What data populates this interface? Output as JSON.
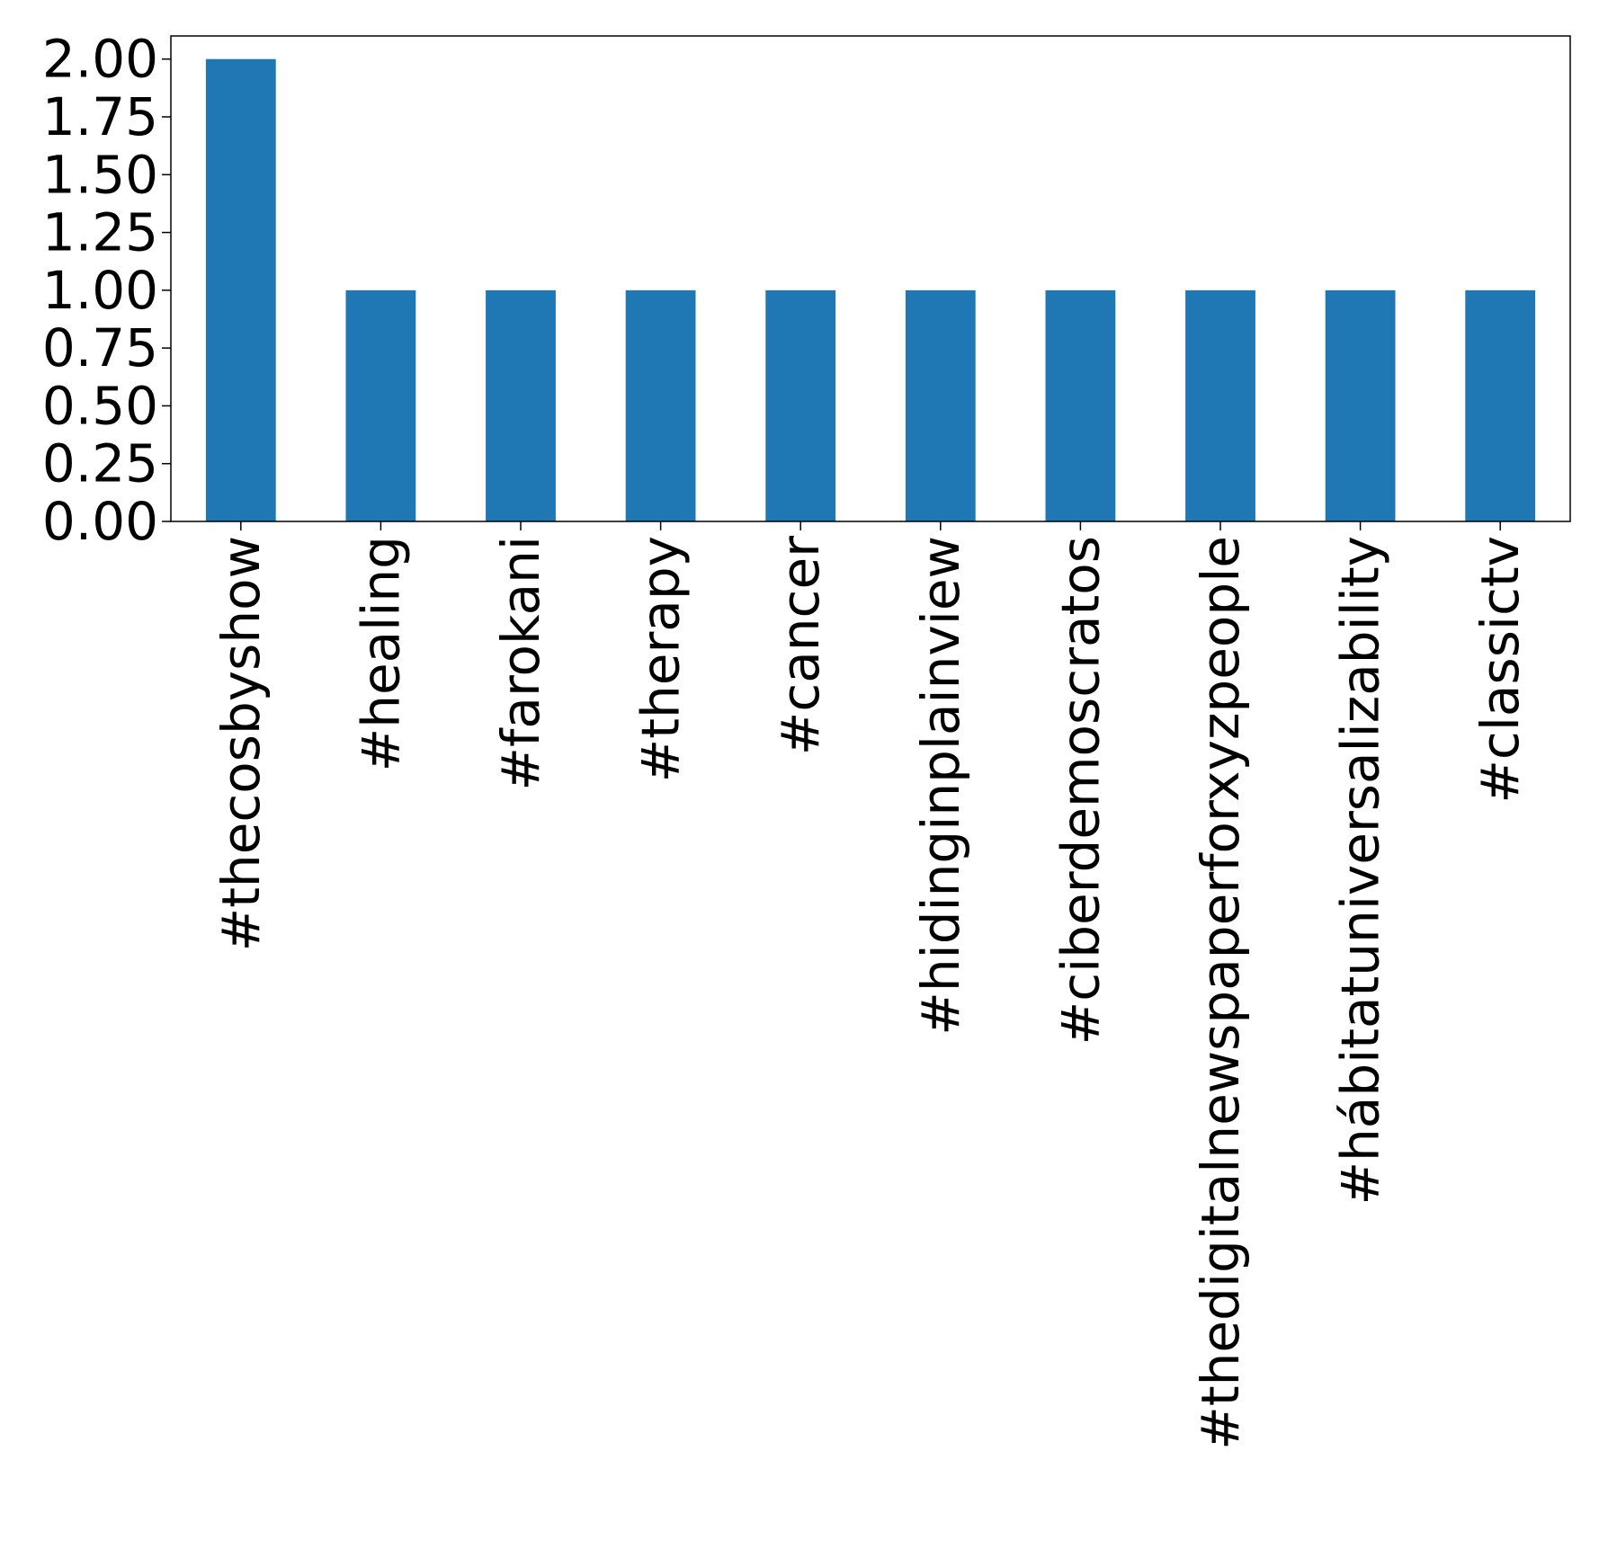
{
  "chart_data": {
    "type": "bar",
    "title": "",
    "xlabel": "",
    "ylabel": "",
    "categories": [
      "#thecosbyshow",
      "#healing",
      "#farokani",
      "#therapy",
      "#cancer",
      "#hidinginplainview",
      "#ciberdemoscratos",
      "#thedigitalnewspaperforxyzpeople",
      "#hábitatuniversalizability",
      "#classictv"
    ],
    "values": [
      2,
      1,
      1,
      1,
      1,
      1,
      1,
      1,
      1,
      1
    ],
    "ylim": [
      0,
      2.1
    ],
    "yticks": [
      "0.00",
      "0.25",
      "0.50",
      "0.75",
      "1.00",
      "1.25",
      "1.50",
      "1.75",
      "2.00"
    ],
    "bar_color": "#1f77b4",
    "grid": false,
    "legend": "none"
  }
}
